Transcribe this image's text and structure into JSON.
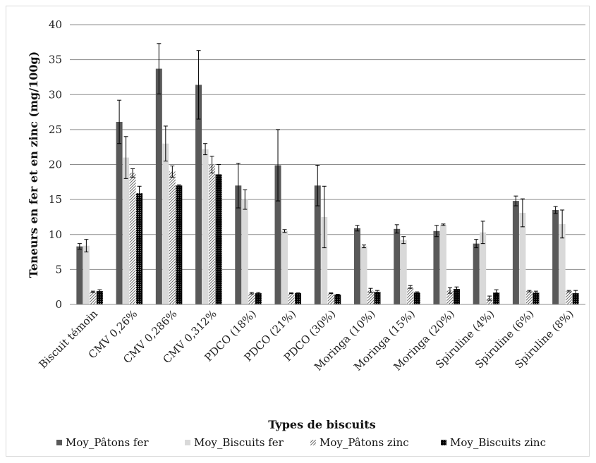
{
  "chart_data": {
    "type": "bar",
    "title": "",
    "xlabel": "Types de biscuits",
    "ylabel": "Teneurs en fer et en zinc (mg/100g)",
    "ylim": [
      0,
      40
    ],
    "yticks": [
      0,
      5,
      10,
      15,
      20,
      25,
      30,
      35,
      40
    ],
    "grid": true,
    "legend_position": "bottom",
    "categories": [
      "Biscuit témoin",
      "CMV 0,26%",
      "CMV 0,286%",
      "CMV 0,312%",
      "PDCO (18%)",
      "PDCO (21%)",
      "PDCO (30%)",
      "Moringa (10%)",
      "Moringa (15%)",
      "Moringa (20%)",
      "Spiruline (4%)",
      "Spiruline (6%)",
      "Spiruline (8%)"
    ],
    "series": [
      {
        "name": "Moy_Pâtons fer",
        "color": "#595959",
        "pattern": "solid",
        "values": [
          8.3,
          26.1,
          33.7,
          31.4,
          17.0,
          19.9,
          17.0,
          10.9,
          10.8,
          10.5,
          8.7,
          14.8,
          13.5
        ],
        "errors": [
          0.4,
          3.1,
          3.6,
          4.9,
          3.2,
          5.1,
          2.9,
          0.4,
          0.6,
          0.8,
          0.6,
          0.7,
          0.5
        ]
      },
      {
        "name": "Moy_Biscuits fer",
        "color": "#d9d9d9",
        "pattern": "solid",
        "values": [
          8.4,
          21.0,
          23.0,
          22.2,
          15.0,
          10.5,
          12.5,
          8.3,
          9.2,
          11.4,
          10.3,
          13.1,
          11.5
        ],
        "errors": [
          0.9,
          3.0,
          2.5,
          0.8,
          1.4,
          0.2,
          4.4,
          0.2,
          0.5,
          0.1,
          1.6,
          2.0,
          2.0
        ]
      },
      {
        "name": "Moy_Pâtons zinc",
        "color": "#7f7f7f",
        "pattern": "hatch",
        "values": [
          1.8,
          18.8,
          19.0,
          20.0,
          1.6,
          1.6,
          1.6,
          2.0,
          2.5,
          2.0,
          0.9,
          1.9,
          1.9
        ],
        "errors": [
          0.1,
          0.6,
          0.8,
          1.2,
          0.1,
          0.05,
          0.05,
          0.3,
          0.2,
          0.4,
          0.3,
          0.1,
          0.1
        ]
      },
      {
        "name": "Moy_Biscuits zinc",
        "color": "#000000",
        "pattern": "dots",
        "values": [
          1.9,
          15.9,
          17.0,
          18.6,
          1.6,
          1.6,
          1.4,
          1.8,
          1.7,
          2.2,
          1.7,
          1.7,
          1.6
        ],
        "errors": [
          0.2,
          1.0,
          0.1,
          1.4,
          0.1,
          0.05,
          0.05,
          0.2,
          0.1,
          0.3,
          0.4,
          0.2,
          0.4
        ]
      }
    ]
  }
}
